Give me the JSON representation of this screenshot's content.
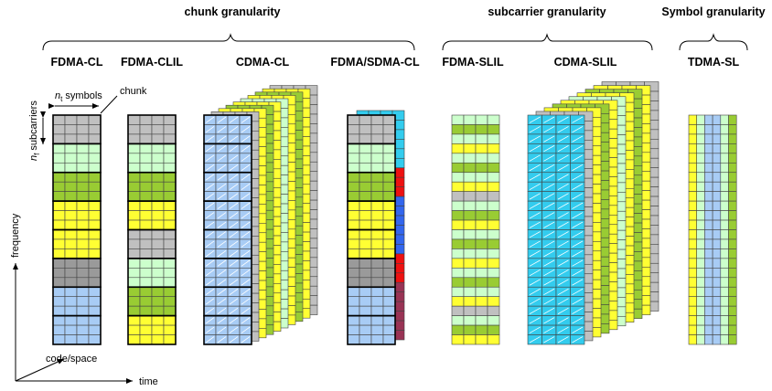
{
  "groups": [
    {
      "title": "chunk granularity"
    },
    {
      "title": "subcarrier granularity"
    },
    {
      "title": "Symbol granularity"
    }
  ],
  "columns": [
    "FDMA-CL",
    "FDMA-CLIL",
    "CDMA-CL",
    "FDMA/SDMA-CL",
    "FDMA-SLIL",
    "CDMA-SLIL",
    "TDMA-SL"
  ],
  "annotations": {
    "symbols": {
      "var": "n",
      "sub": "t",
      "text": " symbols"
    },
    "chunk": "chunk",
    "subcarriers": {
      "var": "n",
      "sub": "f",
      "text": " subcarriers"
    }
  },
  "axes": {
    "frequency": "frequency",
    "code": "code/space",
    "time": "time"
  }
}
